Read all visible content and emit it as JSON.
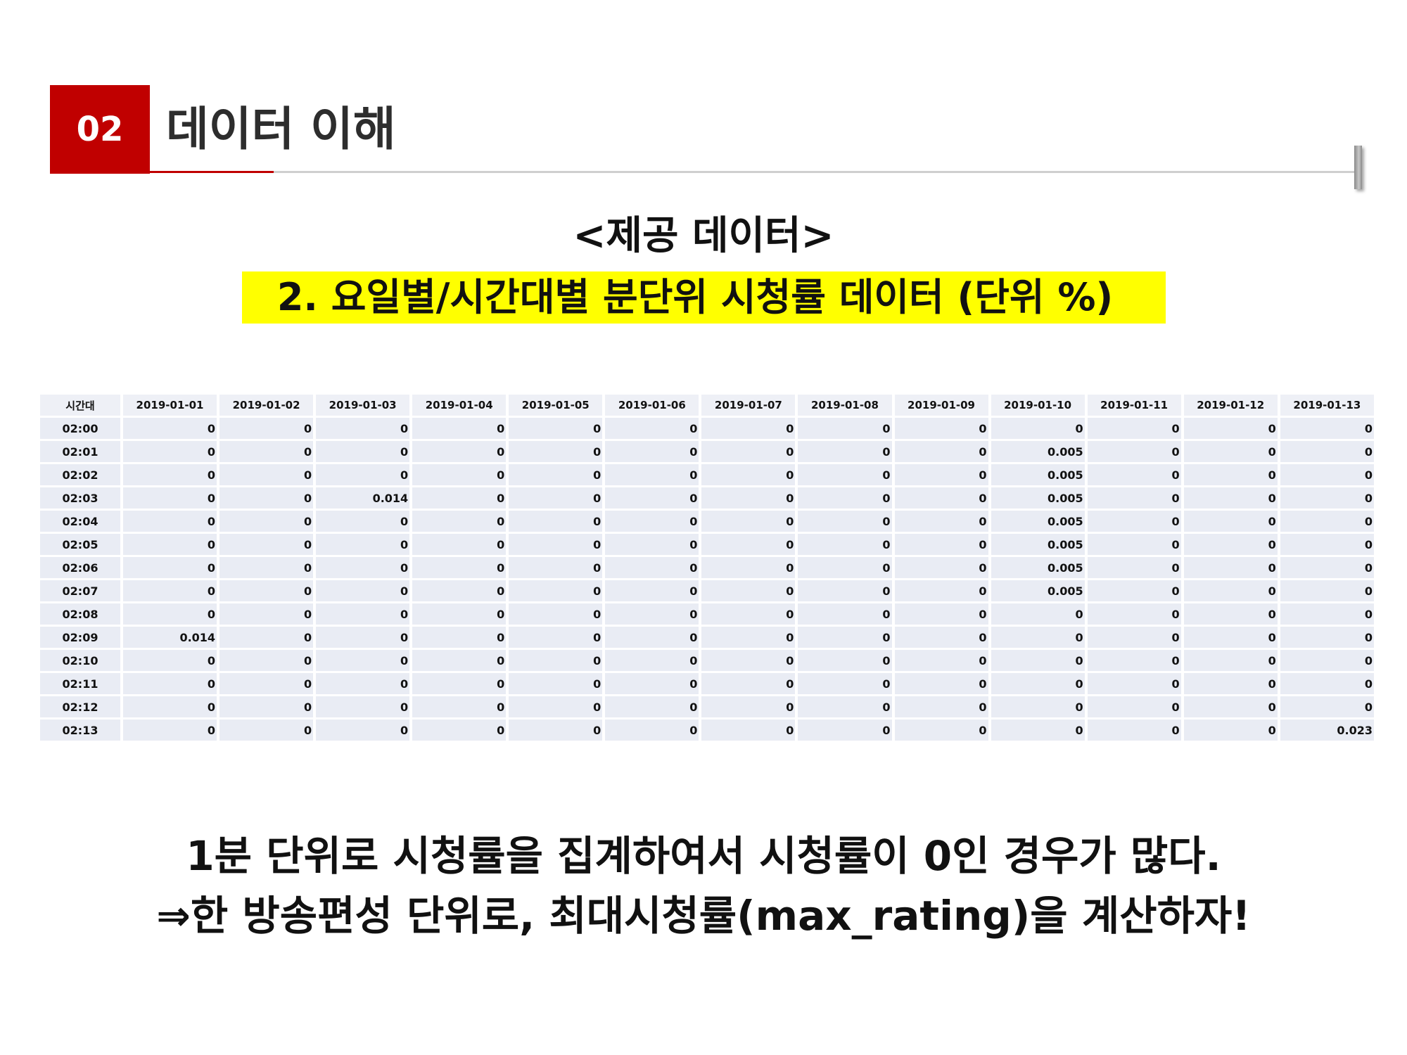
{
  "section": {
    "number": "02",
    "title": "데이터 이해"
  },
  "heading": {
    "line1": "<제공 데이터>",
    "line2": "2. 요일별/시간대별 분단위 시청률 데이터 (단위 %)"
  },
  "table": {
    "headers": [
      "시간대",
      "2019-01-01",
      "2019-01-02",
      "2019-01-03",
      "2019-01-04",
      "2019-01-05",
      "2019-01-06",
      "2019-01-07",
      "2019-01-08",
      "2019-01-09",
      "2019-01-10",
      "2019-01-11",
      "2019-01-12",
      "2019-01-13"
    ],
    "rows": [
      [
        "02:00",
        "0",
        "0",
        "0",
        "0",
        "0",
        "0",
        "0",
        "0",
        "0",
        "0",
        "0",
        "0",
        "0"
      ],
      [
        "02:01",
        "0",
        "0",
        "0",
        "0",
        "0",
        "0",
        "0",
        "0",
        "0",
        "0.005",
        "0",
        "0",
        "0"
      ],
      [
        "02:02",
        "0",
        "0",
        "0",
        "0",
        "0",
        "0",
        "0",
        "0",
        "0",
        "0.005",
        "0",
        "0",
        "0"
      ],
      [
        "02:03",
        "0",
        "0",
        "0.014",
        "0",
        "0",
        "0",
        "0",
        "0",
        "0",
        "0.005",
        "0",
        "0",
        "0"
      ],
      [
        "02:04",
        "0",
        "0",
        "0",
        "0",
        "0",
        "0",
        "0",
        "0",
        "0",
        "0.005",
        "0",
        "0",
        "0"
      ],
      [
        "02:05",
        "0",
        "0",
        "0",
        "0",
        "0",
        "0",
        "0",
        "0",
        "0",
        "0.005",
        "0",
        "0",
        "0"
      ],
      [
        "02:06",
        "0",
        "0",
        "0",
        "0",
        "0",
        "0",
        "0",
        "0",
        "0",
        "0.005",
        "0",
        "0",
        "0"
      ],
      [
        "02:07",
        "0",
        "0",
        "0",
        "0",
        "0",
        "0",
        "0",
        "0",
        "0",
        "0.005",
        "0",
        "0",
        "0"
      ],
      [
        "02:08",
        "0",
        "0",
        "0",
        "0",
        "0",
        "0",
        "0",
        "0",
        "0",
        "0",
        "0",
        "0",
        "0"
      ],
      [
        "02:09",
        "0.014",
        "0",
        "0",
        "0",
        "0",
        "0",
        "0",
        "0",
        "0",
        "0",
        "0",
        "0",
        "0"
      ],
      [
        "02:10",
        "0",
        "0",
        "0",
        "0",
        "0",
        "0",
        "0",
        "0",
        "0",
        "0",
        "0",
        "0",
        "0"
      ],
      [
        "02:11",
        "0",
        "0",
        "0",
        "0",
        "0",
        "0",
        "0",
        "0",
        "0",
        "0",
        "0",
        "0",
        "0"
      ],
      [
        "02:12",
        "0",
        "0",
        "0",
        "0",
        "0",
        "0",
        "0",
        "0",
        "0",
        "0",
        "0",
        "0",
        "0"
      ],
      [
        "02:13",
        "0",
        "0",
        "0",
        "0",
        "0",
        "0",
        "0",
        "0",
        "0",
        "0",
        "0",
        "0",
        "0.023"
      ]
    ]
  },
  "notes": {
    "line1": "1분 단위로 시청률을 집계하여서 시청률이 0인 경우가 많다.",
    "line2": "⇒한 방송편성 단위로, 최대시청률(max_rating)을 계산하자!"
  },
  "colors": {
    "accent": "#c00000",
    "highlight": "#ffff00",
    "cell": "#e9ecf4"
  }
}
